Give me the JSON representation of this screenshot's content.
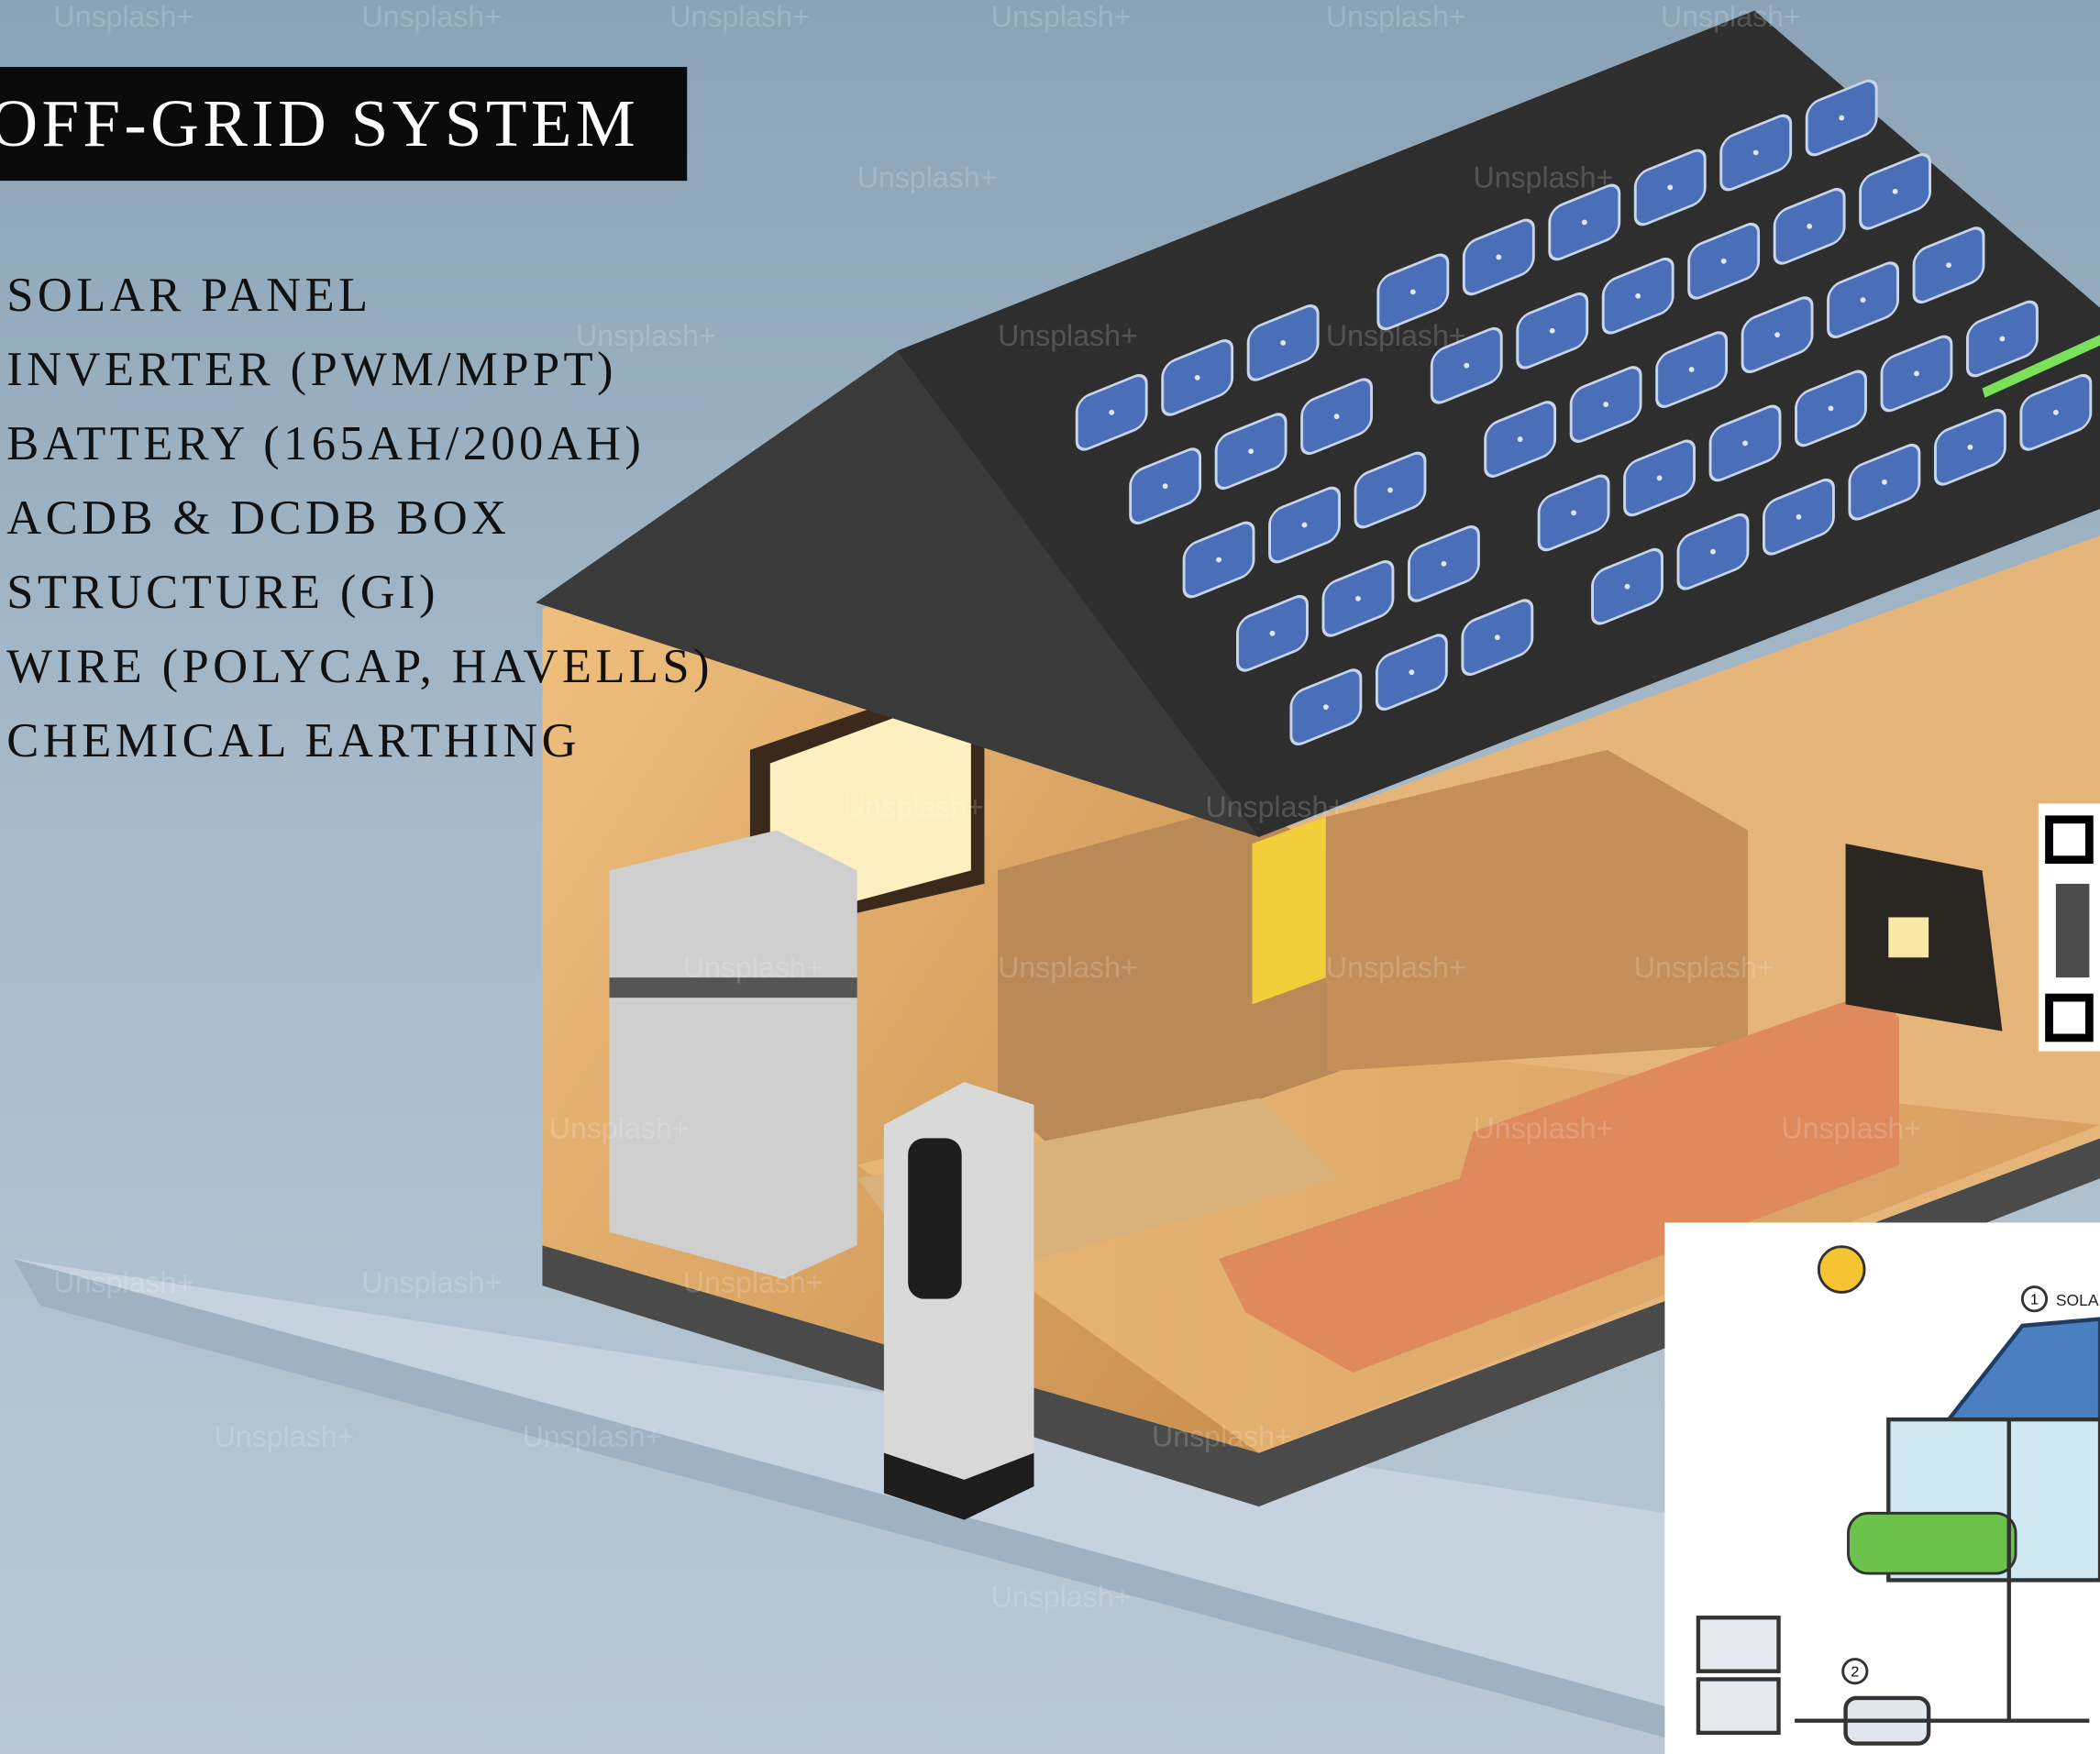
{
  "header": {
    "title": "OFF-GRID SYSTEM"
  },
  "items": [
    "SOLAR PANEL",
    "INVERTER (PWM/MPPT)",
    "BATTERY (165AH/200AH)",
    "ACDB & DCDB BOX",
    "STRUCTURE (GI)",
    "WIRE (POLYCAP, HAVELLS)",
    "CHEMICAL EARTHING"
  ],
  "watermark": "Unsplash+",
  "diagram": {
    "label": "SOLA",
    "step_1": "1",
    "step_2": "2"
  }
}
